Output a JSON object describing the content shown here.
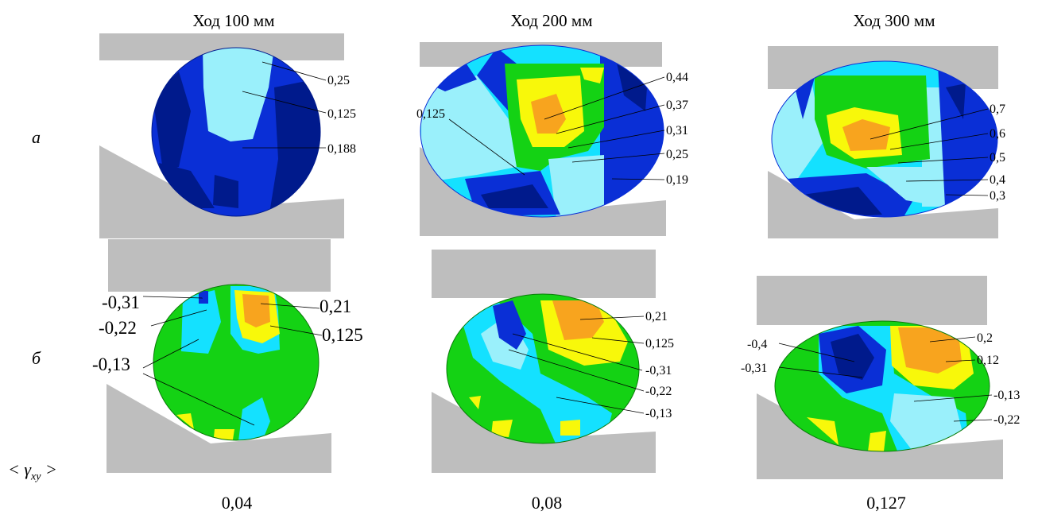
{
  "columns": [
    {
      "header": "Ход 100 мм",
      "avg": "0,04"
    },
    {
      "header": "Ход 200 мм",
      "avg": "0,08"
    },
    {
      "header": "Ход 300 мм",
      "avg": "0,127"
    }
  ],
  "rows": [
    {
      "label": "а"
    },
    {
      "label": "б"
    }
  ],
  "avg_label": {
    "prefix": "< γ",
    "subscript": "xy",
    "suffix": " >"
  },
  "contour_labels": {
    "a1": [
      "0,25",
      "0,125",
      "0,188"
    ],
    "a2": [
      "0,44",
      "0,37",
      "0,31",
      "0,25",
      "0,19",
      "0,125"
    ],
    "a3": [
      "0,7",
      "0,6",
      "0,5",
      "0,4",
      "0,3"
    ],
    "b1": [
      "-0,31",
      "-0,22",
      "-0,13",
      "0,21",
      "0,125"
    ],
    "b2": [
      "0,21",
      "0,125",
      "-0,31",
      "-0,22",
      "-0,13"
    ],
    "b3": [
      "-0,4",
      "-0,31",
      "0,2",
      "0,12",
      "-0,13",
      "-0,22"
    ]
  },
  "colors": {
    "die": "#bebebe",
    "dark_blue": "#001a8c",
    "blue": "#0a2fd6",
    "cyan": "#14e1ff",
    "light_cyan": "#9af0fb",
    "green": "#14d214",
    "yellow": "#f8f80a",
    "orange": "#f8a41e"
  }
}
